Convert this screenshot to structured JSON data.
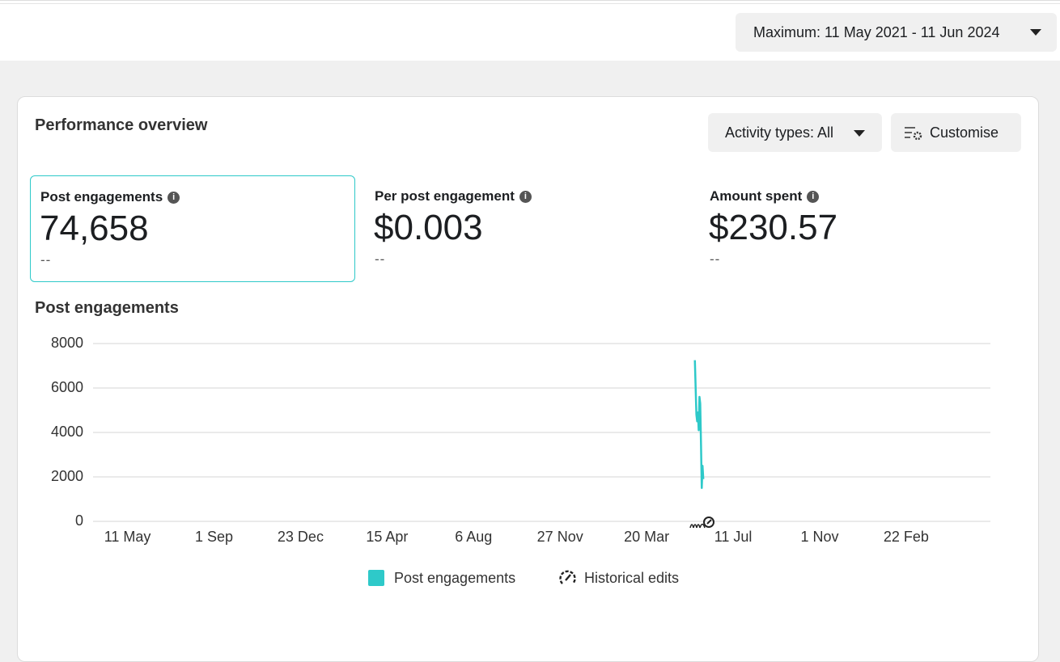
{
  "date_range": "Maximum: 11 May 2021 - 11 Jun 2024",
  "panel": {
    "title": "Performance overview",
    "activity_button": "Activity types: All",
    "customise_button": "Customise"
  },
  "metrics": [
    {
      "label": "Post engagements",
      "value": "74,658",
      "change": "--"
    },
    {
      "label": "Per post engagement",
      "value": "$0.003",
      "change": "--"
    },
    {
      "label": "Amount spent",
      "value": "$230.57",
      "change": "--"
    }
  ],
  "chart_data": {
    "type": "line",
    "title": "Post engagements",
    "x": [
      741,
      743,
      744,
      745,
      746,
      747,
      748,
      749,
      750,
      751,
      752
    ],
    "series": [
      {
        "name": "Post engagements",
        "color": "#2ec9c9",
        "values": [
          7250,
          4800,
          4500,
          4900,
          4100,
          5600,
          5300,
          3500,
          1500,
          2500,
          1900
        ]
      }
    ],
    "xlim": [
      -45,
      1127
    ],
    "xticks": [
      {
        "value": 0,
        "label": "11 May"
      },
      {
        "value": 113,
        "label": "1 Sep"
      },
      {
        "value": 226,
        "label": "23 Dec"
      },
      {
        "value": 339,
        "label": "15 Apr"
      },
      {
        "value": 452,
        "label": "6 Aug"
      },
      {
        "value": 565,
        "label": "27 Nov"
      },
      {
        "value": 678,
        "label": "20 Mar"
      },
      {
        "value": 791,
        "label": "11 Jul"
      },
      {
        "value": 904,
        "label": "1 Nov"
      },
      {
        "value": 1017,
        "label": "22 Feb"
      }
    ],
    "ylim": [
      0,
      8000
    ],
    "yticks": [
      0,
      2000,
      4000,
      6000,
      8000
    ],
    "grid": true,
    "annotation_legend": "Historical edits"
  }
}
